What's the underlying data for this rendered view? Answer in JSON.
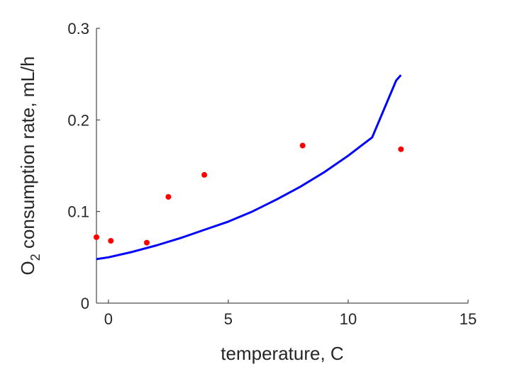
{
  "chart_data": {
    "type": "scatter",
    "xlabel": "temperature, C",
    "ylabel_main": "O",
    "ylabel_subscript": "2",
    "ylabel_rest": " consumption rate, mL/h",
    "xlim": [
      -0.5,
      15
    ],
    "ylim": [
      0,
      0.3
    ],
    "xticks": [
      {
        "value": 0,
        "label": "0"
      },
      {
        "value": 5,
        "label": "5"
      },
      {
        "value": 10,
        "label": "10"
      },
      {
        "value": 15,
        "label": "15"
      }
    ],
    "yticks": [
      {
        "value": 0,
        "label": "0"
      },
      {
        "value": 0.1,
        "label": "0.1"
      },
      {
        "value": 0.2,
        "label": "0.2"
      },
      {
        "value": 0.3,
        "label": "0.3"
      }
    ],
    "grid": false,
    "series": [
      {
        "kind": "points",
        "color": "#ff0000",
        "x": [
          -0.5,
          0.1,
          1.6,
          2.5,
          4.0,
          8.1,
          12.2
        ],
        "y": [
          0.072,
          0.068,
          0.066,
          0.116,
          0.14,
          0.172,
          0.168
        ]
      },
      {
        "kind": "line",
        "color": "#0000ff",
        "x": [
          -0.5,
          0.0,
          1.0,
          2.0,
          3.0,
          4.0,
          5.0,
          6.0,
          7.0,
          8.0,
          9.0,
          10.0,
          11.0,
          12.0,
          12.2
        ],
        "y": [
          0.048,
          0.05,
          0.056,
          0.063,
          0.071,
          0.08,
          0.089,
          0.1,
          0.113,
          0.127,
          0.143,
          0.161,
          0.181,
          0.243,
          0.249
        ]
      }
    ]
  }
}
